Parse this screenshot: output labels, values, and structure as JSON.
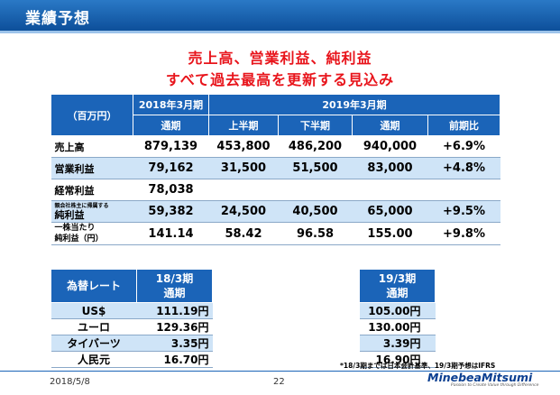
{
  "header": {
    "title": "業績予想"
  },
  "headline": {
    "line1": "売上高、営業利益、純利益",
    "line2": "すべて過去最高を更新する見込み"
  },
  "table": {
    "unit": "（百万円）",
    "h2018": "2018年3月期",
    "h2019": "2019年3月期",
    "sub": [
      "通期",
      "上半期",
      "下半期",
      "通期",
      "前期比"
    ],
    "rows": [
      {
        "label": "売上高",
        "fy18": "879,139",
        "h1": "453,800",
        "h2": "486,200",
        "fy19": "940,000",
        "yoy": "+6.9%"
      },
      {
        "label": "営業利益",
        "fy18": "79,162",
        "h1": "31,500",
        "h2": "51,500",
        "fy19": "83,000",
        "yoy": "+4.8%"
      },
      {
        "label": "経常利益",
        "fy18": "78,038",
        "h1": "",
        "h2": "",
        "fy19": "",
        "yoy": ""
      },
      {
        "label_small": "親会社株主に帰属する",
        "label_big": "純利益",
        "fy18": "59,382",
        "h1": "24,500",
        "h2": "40,500",
        "fy19": "65,000",
        "yoy": "+9.5%"
      },
      {
        "label_small": "一株当たり",
        "label_big": "純利益（円）",
        "fy18": "141.14",
        "h1": "58.42",
        "h2": "96.58",
        "fy19": "155.00",
        "yoy": "+9.8%"
      }
    ]
  },
  "fx": {
    "title": "為替レート",
    "col1_line1": "18/3期",
    "col1_line2": "通期",
    "col2_line1": "19/3期",
    "col2_line2": "通期",
    "rows": [
      {
        "label": "US$",
        "v18": "111.19円",
        "v19": "105.00円"
      },
      {
        "label": "ユーロ",
        "v18": "129.36円",
        "v19": "130.00円"
      },
      {
        "label": "タイバーツ",
        "v18": "3.35円",
        "v19": "3.39円"
      },
      {
        "label": "人民元",
        "v18": "16.70円",
        "v19": "16.90円"
      }
    ]
  },
  "note": "*18/3期までは日本会計基準、19/3期予想はIFRS",
  "footer": {
    "date": "2018/5/8",
    "page": "22",
    "logo": "MinebeaMitsumi",
    "tagline": "Passion to Create Value through Difference"
  },
  "colors": {
    "header": "#0d4f9a",
    "accent": "#1b64b8",
    "stripe": "#cfe4f7",
    "headline": "#e8141b"
  }
}
